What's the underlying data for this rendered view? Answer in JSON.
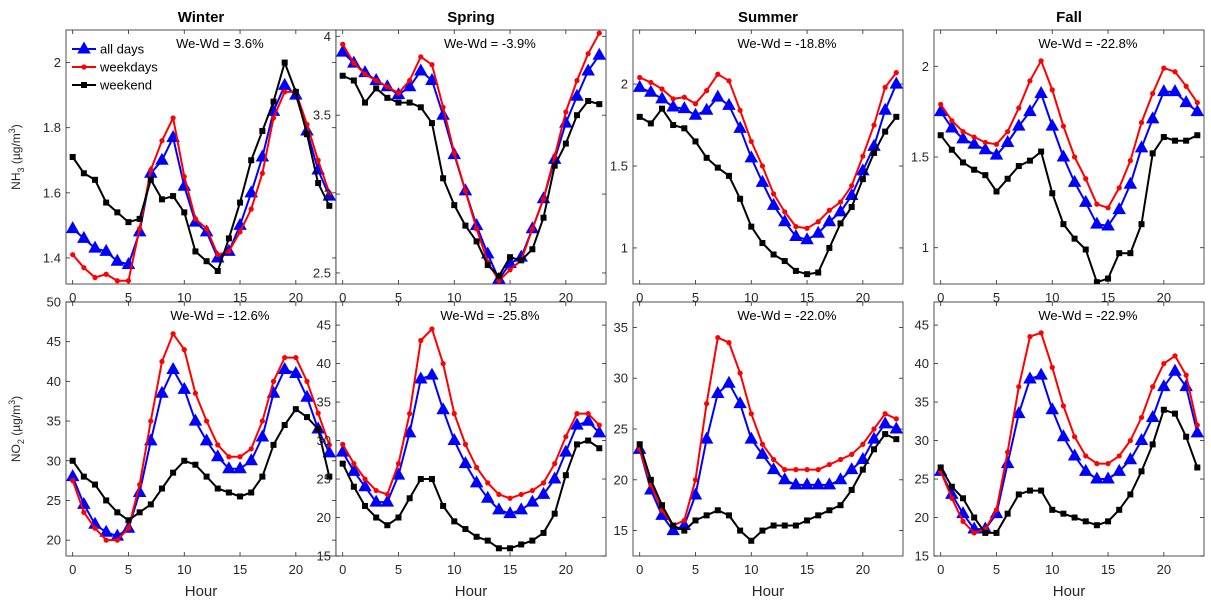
{
  "chart_data": {
    "type": "line",
    "hours": [
      0,
      1,
      2,
      3,
      4,
      5,
      6,
      7,
      8,
      9,
      10,
      11,
      12,
      13,
      14,
      15,
      16,
      17,
      18,
      19,
      20,
      21,
      22,
      23
    ],
    "x_ticks": [
      0,
      5,
      10,
      15,
      20
    ],
    "xlabel": "Hour",
    "seasons": [
      "Winter",
      "Spring",
      "Summer",
      "Fall"
    ],
    "colors": {
      "all_days": "#0000ff",
      "weekdays": "#ff0000",
      "weekend": "#000000"
    },
    "markers": {
      "all_days": "triangle",
      "weekdays": "dot",
      "weekend": "square"
    },
    "legend": {
      "placement": "top-left of Winter NH3 panel",
      "entries": [
        "all days",
        "weekdays",
        "weekend"
      ]
    },
    "rows": [
      {
        "pollutant": "NH3",
        "ylabel": {
          "base": "NH",
          "sub": "3",
          "unit_pre": " (µg/m",
          "unit_sup": "3",
          "unit_post": ")"
        }
      },
      {
        "pollutant": "NO2",
        "ylabel": {
          "base": "NO",
          "sub": "2",
          "unit_pre": " (µg/m",
          "unit_sup": "3",
          "unit_post": ")"
        }
      }
    ],
    "panels": [
      {
        "season": "Winter",
        "pollutant": "NH3",
        "title": "Winter",
        "annotation": "We-Wd = 3.6%",
        "ylim": [
          1.32,
          2.1
        ],
        "yticks": [
          1.4,
          1.6,
          1.8,
          2
        ],
        "ytick_labels": [
          "1.4",
          "1.6",
          "1.8",
          "2"
        ],
        "series": [
          {
            "name": "all days",
            "values": [
              1.49,
              1.46,
              1.43,
              1.42,
              1.39,
              1.38,
              1.48,
              1.66,
              1.7,
              1.77,
              1.62,
              1.51,
              1.48,
              1.4,
              1.42,
              1.5,
              1.6,
              1.71,
              1.85,
              1.93,
              1.9,
              1.79,
              1.67,
              1.59
            ]
          },
          {
            "name": "weekdays",
            "values": [
              1.41,
              1.37,
              1.34,
              1.35,
              1.33,
              1.33,
              1.49,
              1.67,
              1.76,
              1.83,
              1.65,
              1.52,
              1.49,
              1.41,
              1.42,
              1.48,
              1.55,
              1.66,
              1.83,
              1.91,
              1.91,
              1.81,
              1.7,
              1.6
            ]
          },
          {
            "name": "weekend",
            "values": [
              1.71,
              1.66,
              1.64,
              1.57,
              1.54,
              1.51,
              1.52,
              1.64,
              1.58,
              1.59,
              1.54,
              1.42,
              1.39,
              1.36,
              1.46,
              1.57,
              1.7,
              1.79,
              1.88,
              2.0,
              1.91,
              1.78,
              1.63,
              1.56
            ]
          }
        ]
      },
      {
        "season": "Spring",
        "pollutant": "NH3",
        "title": "Spring",
        "annotation": "We-Wd = -3.9%",
        "ylim": [
          2.43,
          4.04
        ],
        "yticks": [
          2.5,
          3,
          3.5,
          4
        ],
        "ytick_labels": [
          "2.5",
          "3",
          "3.5",
          "4"
        ],
        "series": [
          {
            "name": "all days",
            "values": [
              3.9,
              3.83,
              3.77,
              3.72,
              3.68,
              3.63,
              3.68,
              3.78,
              3.72,
              3.5,
              3.25,
              3.02,
              2.8,
              2.62,
              2.46,
              2.56,
              2.6,
              2.78,
              2.97,
              3.22,
              3.45,
              3.62,
              3.78,
              3.88
            ]
          },
          {
            "name": "weekdays",
            "values": [
              3.95,
              3.83,
              3.76,
              3.72,
              3.68,
              3.64,
              3.72,
              3.87,
              3.82,
              3.55,
              3.26,
              3.02,
              2.78,
              2.57,
              2.45,
              2.52,
              2.58,
              2.78,
              2.97,
              3.24,
              3.52,
              3.72,
              3.89,
              4.02
            ]
          },
          {
            "name": "weekend",
            "values": [
              3.75,
              3.72,
              3.58,
              3.67,
              3.61,
              3.58,
              3.58,
              3.55,
              3.45,
              3.1,
              2.93,
              2.8,
              2.7,
              2.55,
              2.48,
              2.6,
              2.58,
              2.65,
              2.85,
              3.18,
              3.32,
              3.5,
              3.59,
              3.57
            ]
          }
        ]
      },
      {
        "season": "Summer",
        "pollutant": "NH3",
        "title": "Summer",
        "annotation": "We-Wd = -18.8%",
        "ylim": [
          0.78,
          2.33
        ],
        "yticks": [
          1,
          1.5,
          2
        ],
        "ytick_labels": [
          "1",
          "1.5",
          "2"
        ],
        "series": [
          {
            "name": "all days",
            "values": [
              1.98,
              1.95,
              1.91,
              1.86,
              1.85,
              1.81,
              1.84,
              1.92,
              1.87,
              1.73,
              1.55,
              1.4,
              1.26,
              1.16,
              1.07,
              1.05,
              1.09,
              1.16,
              1.22,
              1.32,
              1.47,
              1.62,
              1.84,
              2.0
            ]
          },
          {
            "name": "weekdays",
            "values": [
              2.04,
              2.01,
              1.97,
              1.91,
              1.92,
              1.88,
              1.96,
              2.06,
              2.02,
              1.84,
              1.65,
              1.5,
              1.33,
              1.22,
              1.13,
              1.12,
              1.16,
              1.23,
              1.28,
              1.38,
              1.56,
              1.75,
              1.98,
              2.07
            ]
          },
          {
            "name": "weekend",
            "values": [
              1.8,
              1.76,
              1.85,
              1.75,
              1.73,
              1.65,
              1.55,
              1.49,
              1.44,
              1.3,
              1.13,
              1.03,
              0.96,
              0.92,
              0.86,
              0.84,
              0.85,
              1.0,
              1.15,
              1.25,
              1.42,
              1.58,
              1.71,
              1.8
            ]
          }
        ]
      },
      {
        "season": "Fall",
        "pollutant": "NH3",
        "title": "Fall",
        "annotation": "We-Wd = -22.8%",
        "ylim": [
          0.8,
          2.2
        ],
        "yticks": [
          1,
          1.5,
          2
        ],
        "ytick_labels": [
          "1",
          "1.5",
          "2"
        ],
        "series": [
          {
            "name": "all days",
            "values": [
              1.75,
              1.66,
              1.6,
              1.57,
              1.54,
              1.51,
              1.58,
              1.67,
              1.75,
              1.85,
              1.67,
              1.5,
              1.36,
              1.25,
              1.13,
              1.12,
              1.21,
              1.35,
              1.55,
              1.71,
              1.86,
              1.86,
              1.8,
              1.75
            ]
          },
          {
            "name": "weekdays",
            "values": [
              1.79,
              1.7,
              1.64,
              1.61,
              1.58,
              1.57,
              1.64,
              1.77,
              1.92,
              2.03,
              1.87,
              1.67,
              1.5,
              1.38,
              1.24,
              1.22,
              1.33,
              1.48,
              1.69,
              1.85,
              1.99,
              1.97,
              1.89,
              1.8
            ]
          },
          {
            "name": "weekend",
            "values": [
              1.62,
              1.54,
              1.47,
              1.43,
              1.4,
              1.31,
              1.38,
              1.45,
              1.48,
              1.53,
              1.3,
              1.13,
              1.05,
              0.99,
              0.81,
              0.83,
              0.97,
              0.97,
              1.13,
              1.52,
              1.61,
              1.59,
              1.59,
              1.62
            ]
          }
        ]
      },
      {
        "season": "Winter",
        "pollutant": "NO2",
        "title": "",
        "annotation": "We-Wd = -12.6%",
        "ylim": [
          18,
          50
        ],
        "yticks": [
          20,
          25,
          30,
          35,
          40,
          45,
          50
        ],
        "ytick_labels": [
          "20",
          "25",
          "30",
          "35",
          "40",
          "45",
          "50"
        ],
        "series": [
          {
            "name": "all days",
            "values": [
              28.0,
              24.5,
              22.0,
              21.0,
              20.5,
              21.5,
              26.0,
              32.5,
              38.5,
              41.5,
              39.0,
              35.0,
              32.5,
              30.5,
              29.0,
              29.0,
              30.0,
              33.0,
              38.5,
              41.5,
              41.0,
              38.0,
              34.0,
              31.0
            ]
          },
          {
            "name": "weekdays",
            "values": [
              27.5,
              23.5,
              21.5,
              20.0,
              20.0,
              21.5,
              27.0,
              35.0,
              42.5,
              46.0,
              44.0,
              38.5,
              35.0,
              32.0,
              30.5,
              30.5,
              31.5,
              35.0,
              40.0,
              43.0,
              43.0,
              40.0,
              36.0,
              32.0
            ]
          },
          {
            "name": "weekend",
            "values": [
              30.0,
              28.0,
              27.0,
              25.0,
              23.5,
              22.5,
              23.5,
              24.5,
              26.5,
              28.5,
              30.0,
              29.5,
              28.0,
              26.5,
              26.0,
              25.5,
              26.0,
              28.0,
              32.0,
              34.5,
              36.5,
              35.5,
              34.0,
              28.0
            ]
          }
        ]
      },
      {
        "season": "Spring",
        "pollutant": "NO2",
        "title": "",
        "annotation": "We-Wd = -25.8%",
        "ylim": [
          15,
          48
        ],
        "yticks": [
          15,
          20,
          25,
          30,
          35,
          40,
          45
        ],
        "ytick_labels": [
          "15",
          "20",
          "25",
          "30",
          "35",
          "40",
          "45"
        ],
        "series": [
          {
            "name": "all days",
            "values": [
              28.5,
              26.0,
              24.0,
              22.0,
              22.0,
              25.5,
              31.0,
              38.0,
              38.5,
              34.0,
              30.0,
              27.0,
              24.5,
              22.5,
              21.0,
              20.5,
              21.0,
              22.0,
              23.0,
              25.0,
              28.5,
              32.0,
              32.5,
              31.0
            ]
          },
          {
            "name": "weekdays",
            "values": [
              29.5,
              27.0,
              25.0,
              23.5,
              23.0,
              27.0,
              33.5,
              43.0,
              44.5,
              40.0,
              33.5,
              29.5,
              26.5,
              24.5,
              23.0,
              22.5,
              23.0,
              23.5,
              24.5,
              27.0,
              30.5,
              33.5,
              33.5,
              32.0
            ]
          },
          {
            "name": "weekend",
            "values": [
              27.0,
              24.0,
              21.5,
              20.0,
              19.0,
              20.0,
              22.5,
              25.0,
              25.0,
              21.5,
              19.5,
              18.5,
              17.5,
              17.0,
              16.0,
              16.0,
              16.5,
              17.0,
              18.0,
              20.5,
              25.5,
              29.5,
              30.0,
              29.0
            ]
          }
        ]
      },
      {
        "season": "Summer",
        "pollutant": "NO2",
        "title": "",
        "annotation": "We-Wd = -22.0%",
        "ylim": [
          12.5,
          37.5
        ],
        "yticks": [
          15,
          20,
          25,
          30,
          35
        ],
        "ytick_labels": [
          "15",
          "20",
          "25",
          "30",
          "35"
        ],
        "series": [
          {
            "name": "all days",
            "values": [
              23.0,
              19.0,
              16.5,
              15.0,
              15.5,
              18.5,
              24.0,
              28.5,
              29.5,
              27.5,
              24.0,
              22.5,
              21.0,
              20.0,
              19.5,
              19.5,
              19.5,
              19.5,
              20.0,
              21.0,
              22.0,
              24.0,
              25.5,
              25.0
            ]
          },
          {
            "name": "weekdays",
            "values": [
              23.0,
              19.5,
              17.0,
              15.5,
              16.0,
              20.0,
              27.5,
              34.0,
              33.5,
              30.5,
              26.5,
              23.5,
              22.0,
              21.0,
              21.0,
              21.0,
              21.0,
              21.5,
              22.0,
              22.5,
              23.5,
              25.0,
              26.5,
              26.0
            ]
          },
          {
            "name": "weekend",
            "values": [
              23.5,
              20.0,
              17.5,
              15.5,
              15.0,
              16.0,
              16.5,
              17.0,
              16.5,
              15.0,
              14.0,
              15.0,
              15.5,
              15.5,
              15.5,
              16.0,
              16.5,
              17.0,
              17.5,
              19.0,
              21.0,
              23.0,
              24.5,
              24.0
            ]
          }
        ]
      },
      {
        "season": "Fall",
        "pollutant": "NO2",
        "title": "",
        "annotation": "We-Wd = -22.9%",
        "ylim": [
          15,
          48
        ],
        "yticks": [
          15,
          20,
          25,
          30,
          35,
          40,
          45
        ],
        "ytick_labels": [
          "15",
          "20",
          "25",
          "30",
          "35",
          "40",
          "45"
        ],
        "series": [
          {
            "name": "all days",
            "values": [
              26.0,
              23.0,
              20.5,
              18.5,
              18.5,
              20.5,
              27.0,
              33.5,
              38.0,
              38.5,
              34.0,
              30.5,
              28.0,
              26.0,
              25.0,
              25.0,
              26.0,
              27.5,
              30.0,
              33.0,
              37.0,
              39.0,
              37.0,
              31.0
            ]
          },
          {
            "name": "weekdays",
            "values": [
              26.0,
              22.5,
              19.5,
              18.0,
              18.5,
              21.0,
              28.5,
              37.0,
              43.5,
              44.0,
              39.5,
              34.5,
              30.5,
              28.0,
              27.0,
              27.0,
              28.0,
              30.0,
              33.0,
              37.0,
              40.0,
              41.0,
              38.5,
              32.0
            ]
          },
          {
            "name": "weekend",
            "values": [
              26.5,
              24.0,
              22.5,
              20.0,
              18.0,
              18.0,
              20.5,
              23.0,
              23.5,
              23.5,
              21.0,
              20.5,
              20.0,
              19.5,
              19.0,
              19.5,
              21.0,
              23.0,
              26.0,
              29.5,
              34.0,
              33.5,
              30.5,
              26.5
            ]
          }
        ]
      }
    ]
  }
}
